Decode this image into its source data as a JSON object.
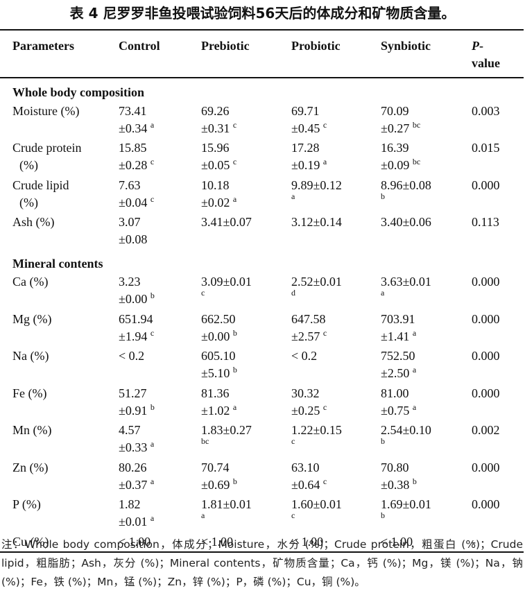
{
  "title": "表 4 尼罗罗非鱼投喂试验饲料56天后的体成分和矿物质含量。",
  "table": {
    "headers": [
      "Parameters",
      "Control",
      "Prebiotic",
      "Probiotic",
      "Synbiotic",
      {
        "italic": "P",
        "text": "-value"
      }
    ],
    "sections": [
      {
        "title": "Whole body composition",
        "rows": [
          {
            "parameter": "Moisture (%)",
            "cells": [
              {
                "lines": [
                  "73.41",
                  "±0.34"
                ],
                "sig": "a"
              },
              {
                "lines": [
                  "69.26",
                  "±0.31"
                ],
                "sig": "c"
              },
              {
                "lines": [
                  "69.71",
                  "±0.45"
                ],
                "sig": "c"
              },
              {
                "lines": [
                  "70.09",
                  "±0.27"
                ],
                "sig": "bc"
              }
            ],
            "p_value": "0.003"
          },
          {
            "parameter": "Crude protein (%)",
            "cells": [
              {
                "lines": [
                  "15.85",
                  "±0.28"
                ],
                "sig": "c"
              },
              {
                "lines": [
                  "15.96",
                  "±0.05"
                ],
                "sig": "c"
              },
              {
                "lines": [
                  "17.28",
                  "±0.19"
                ],
                "sig": "a"
              },
              {
                "lines": [
                  "16.39",
                  "±0.09"
                ],
                "sig": "bc"
              }
            ],
            "p_value": "0.015"
          },
          {
            "parameter": "Crude lipid (%)",
            "cells": [
              {
                "lines": [
                  "7.63",
                  "±0.04"
                ],
                "sig": "c"
              },
              {
                "lines": [
                  "10.18",
                  "±0.02"
                ],
                "sig": "a"
              },
              {
                "lines": [
                  "9.89±0.12"
                ],
                "sig": "a"
              },
              {
                "lines": [
                  "8.96±0.08"
                ],
                "sig": "b"
              }
            ],
            "p_value": "0.000"
          },
          {
            "parameter": "Ash (%)",
            "cells": [
              {
                "lines": [
                  "3.07",
                  "±0.08"
                ]
              },
              {
                "lines": [
                  "3.41±0.07"
                ]
              },
              {
                "lines": [
                  "3.12±0.14"
                ]
              },
              {
                "lines": [
                  "3.40±0.06"
                ]
              }
            ],
            "p_value": "0.113"
          }
        ]
      },
      {
        "title": "Mineral contents",
        "rows": [
          {
            "parameter": "Ca (%)",
            "cells": [
              {
                "lines": [
                  "3.23",
                  "±0.00"
                ],
                "sig": "b"
              },
              {
                "lines": [
                  "3.09±0.01"
                ],
                "sig": "c"
              },
              {
                "lines": [
                  "2.52±0.01"
                ],
                "sig": "d"
              },
              {
                "lines": [
                  "3.63±0.01"
                ],
                "sig": "a"
              }
            ],
            "p_value": "0.000"
          },
          {
            "parameter": "Mg (%)",
            "cells": [
              {
                "lines": [
                  "651.94",
                  "±1.94"
                ],
                "sig": "c"
              },
              {
                "lines": [
                  "662.50",
                  "±0.00"
                ],
                "sig": "b"
              },
              {
                "lines": [
                  "647.58",
                  "±2.57"
                ],
                "sig": "c"
              },
              {
                "lines": [
                  "703.91",
                  "±1.41"
                ],
                "sig": "a"
              }
            ],
            "p_value": "0.000"
          },
          {
            "parameter": "Na (%)",
            "cells": [
              {
                "lines": [
                  "< 0.2"
                ]
              },
              {
                "lines": [
                  "605.10",
                  "±5.10"
                ],
                "sig": "b"
              },
              {
                "lines": [
                  "< 0.2"
                ]
              },
              {
                "lines": [
                  "752.50",
                  "±2.50"
                ],
                "sig": "a"
              }
            ],
            "p_value": "0.000"
          },
          {
            "parameter": "Fe (%)",
            "cells": [
              {
                "lines": [
                  "51.27",
                  "±0.91"
                ],
                "sig": "b"
              },
              {
                "lines": [
                  "81.36",
                  "±1.02"
                ],
                "sig": "a"
              },
              {
                "lines": [
                  "30.32",
                  "±0.25"
                ],
                "sig": "c"
              },
              {
                "lines": [
                  "81.00",
                  "±0.75"
                ],
                "sig": "a"
              }
            ],
            "p_value": "0.000"
          },
          {
            "parameter": "Mn (%)",
            "cells": [
              {
                "lines": [
                  "4.57",
                  "±0.33"
                ],
                "sig": "a"
              },
              {
                "lines": [
                  "1.83±0.27"
                ],
                "sig": "bc"
              },
              {
                "lines": [
                  "1.22±0.15"
                ],
                "sig": "c"
              },
              {
                "lines": [
                  "2.54±0.10"
                ],
                "sig": "b"
              }
            ],
            "p_value": "0.002"
          },
          {
            "parameter": "Zn (%)",
            "cells": [
              {
                "lines": [
                  "80.26",
                  "±0.37"
                ],
                "sig": "a"
              },
              {
                "lines": [
                  "70.74",
                  "±0.69"
                ],
                "sig": "b"
              },
              {
                "lines": [
                  "63.10",
                  "±0.64"
                ],
                "sig": "c"
              },
              {
                "lines": [
                  "70.80",
                  "±0.38"
                ],
                "sig": "b"
              }
            ],
            "p_value": "0.000"
          },
          {
            "parameter": "P (%)",
            "cells": [
              {
                "lines": [
                  "1.82",
                  "±0.01"
                ],
                "sig": "a"
              },
              {
                "lines": [
                  "1.81±0.01"
                ],
                "sig": "a"
              },
              {
                "lines": [
                  "1.60±0.01"
                ],
                "sig": "c"
              },
              {
                "lines": [
                  "1.69±0.01"
                ],
                "sig": "b"
              }
            ],
            "p_value": "0.000"
          },
          {
            "parameter": "Cu (%)",
            "cells": [
              {
                "lines": [
                  "< 1.00"
                ]
              },
              {
                "lines": [
                  "< 1.00"
                ]
              },
              {
                "lines": [
                  "< 1.00"
                ]
              },
              {
                "lines": [
                  "< 1.00"
                ]
              }
            ],
            "p_value": "-"
          }
        ]
      }
    ]
  },
  "note": "注：Whole body composition，体成分；Moisture，水分 (%)；Crude protein，粗蛋白 (%)；Crude lipid，粗脂肪；Ash，灰分 (%)；Mineral contents，矿物质含量；Ca，钙 (%)；Mg，镁 (%)；Na，钠 (%)；Fe，铁 (%)；Mn，锰 (%)；Zn，锌 (%)；P，磷 (%)；Cu，铜 (%)。"
}
